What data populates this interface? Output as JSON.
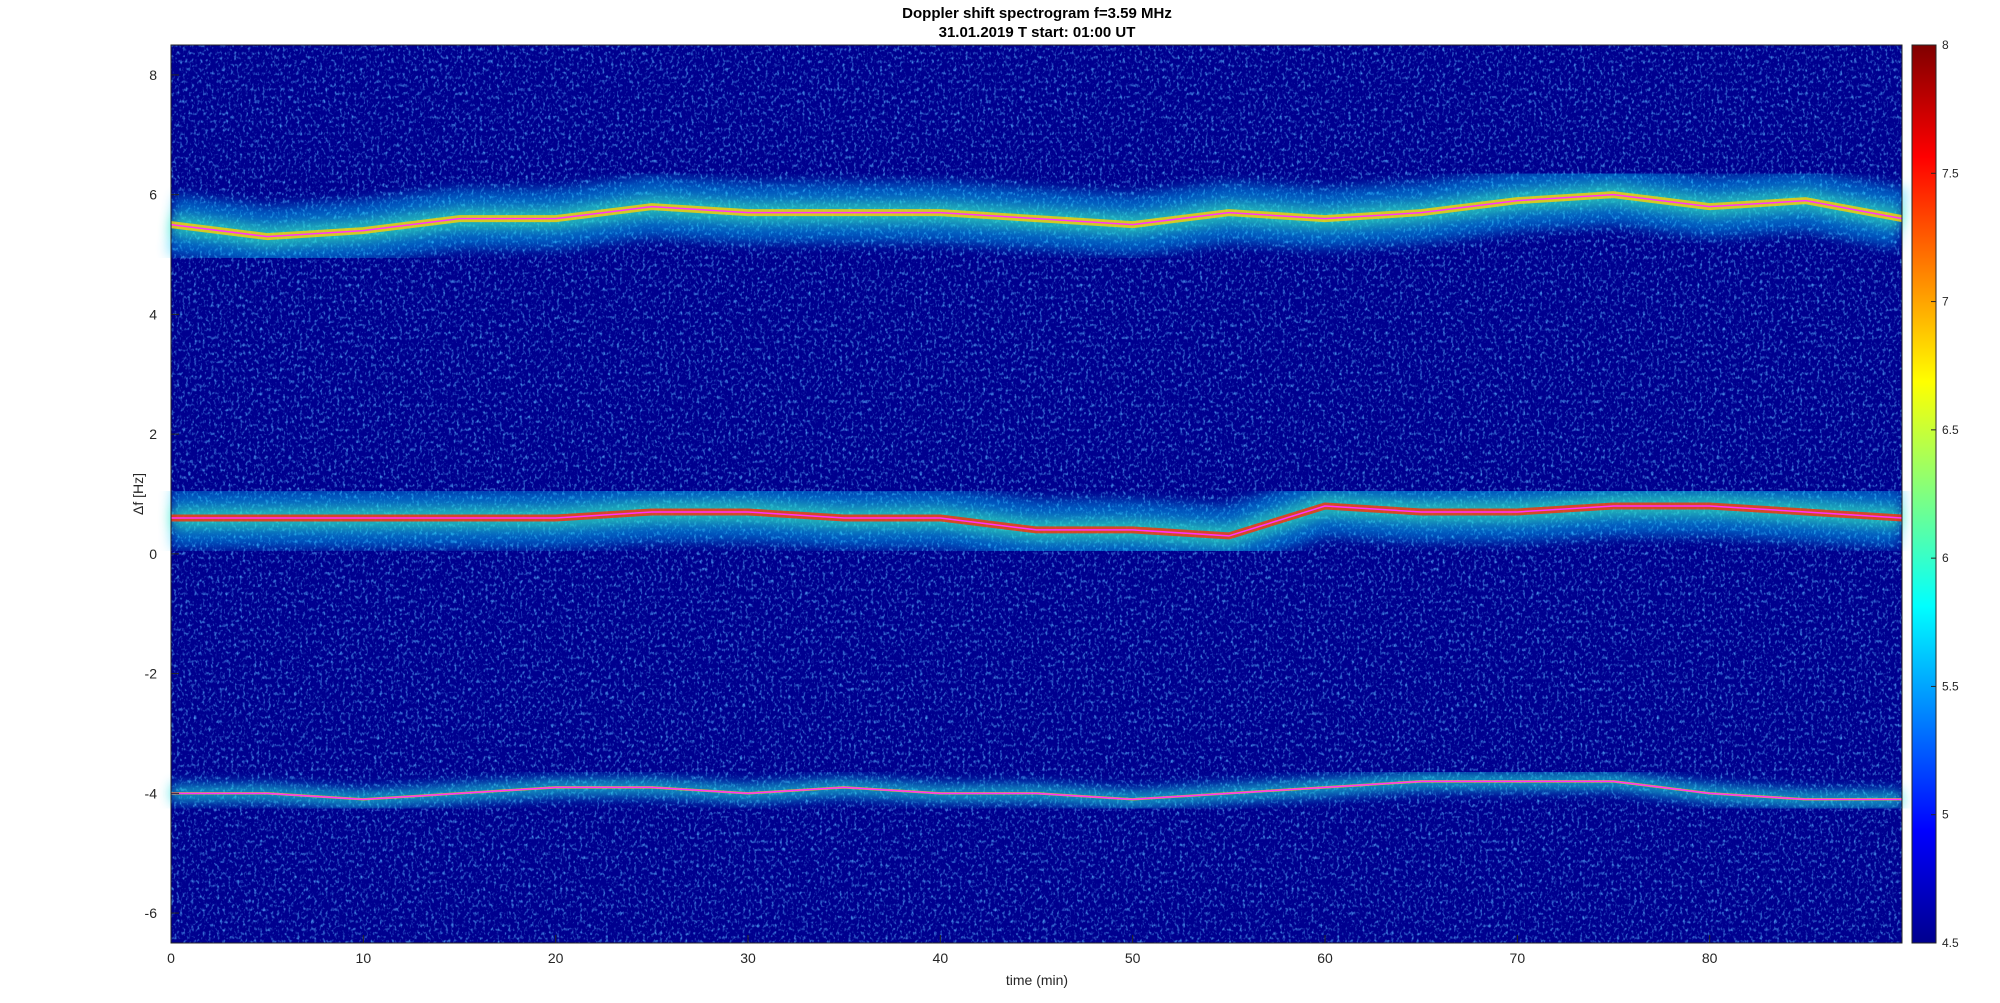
{
  "chart_data": {
    "type": "spectrogram",
    "title": "Doppler shift spectrogram f=3.59 MHz",
    "subtitle": "31.01.2019   T start: 01:00 UT",
    "x_label": "time (min)",
    "y_label": "Δf [Hz]",
    "colormap": "jet",
    "x": [
      0,
      5,
      10,
      15,
      20,
      25,
      30,
      35,
      40,
      45,
      50,
      55,
      60,
      65,
      70,
      75,
      80,
      85,
      90
    ],
    "series": [
      {
        "color": "#ff33ff",
        "values": [
          5.5,
          5.3,
          5.4,
          5.6,
          5.6,
          5.8,
          5.7,
          5.7,
          5.7,
          5.6,
          5.5,
          5.7,
          5.6,
          5.7,
          5.9,
          6.0,
          5.8,
          5.9,
          5.6
        ]
      },
      {
        "color": "#ff33ff",
        "values": [
          0.6,
          0.6,
          0.6,
          0.6,
          0.6,
          0.7,
          0.7,
          0.6,
          0.6,
          0.4,
          0.4,
          0.3,
          0.8,
          0.7,
          0.7,
          0.8,
          0.8,
          0.7,
          0.6
        ]
      },
      {
        "color": "#ff33ff",
        "values": [
          -4.0,
          -4.0,
          -4.1,
          -4.0,
          -3.9,
          -3.9,
          -4.0,
          -3.9,
          -4.0,
          -4.0,
          -4.1,
          -4.0,
          -3.9,
          -3.8,
          -3.8,
          -3.8,
          -4.0,
          -4.1,
          -4.1
        ]
      }
    ],
    "xlim": [
      0,
      90
    ],
    "xticks": [
      0,
      10,
      20,
      30,
      40,
      50,
      60,
      70,
      80
    ],
    "ylim": [
      -6.5,
      8.5
    ],
    "yticks": [
      -6,
      -4,
      -2,
      0,
      2,
      4,
      6,
      8
    ],
    "clim": [
      4.5,
      8
    ],
    "cticks": [
      4.5,
      5,
      5.5,
      6,
      6.5,
      7,
      7.5,
      8
    ]
  }
}
